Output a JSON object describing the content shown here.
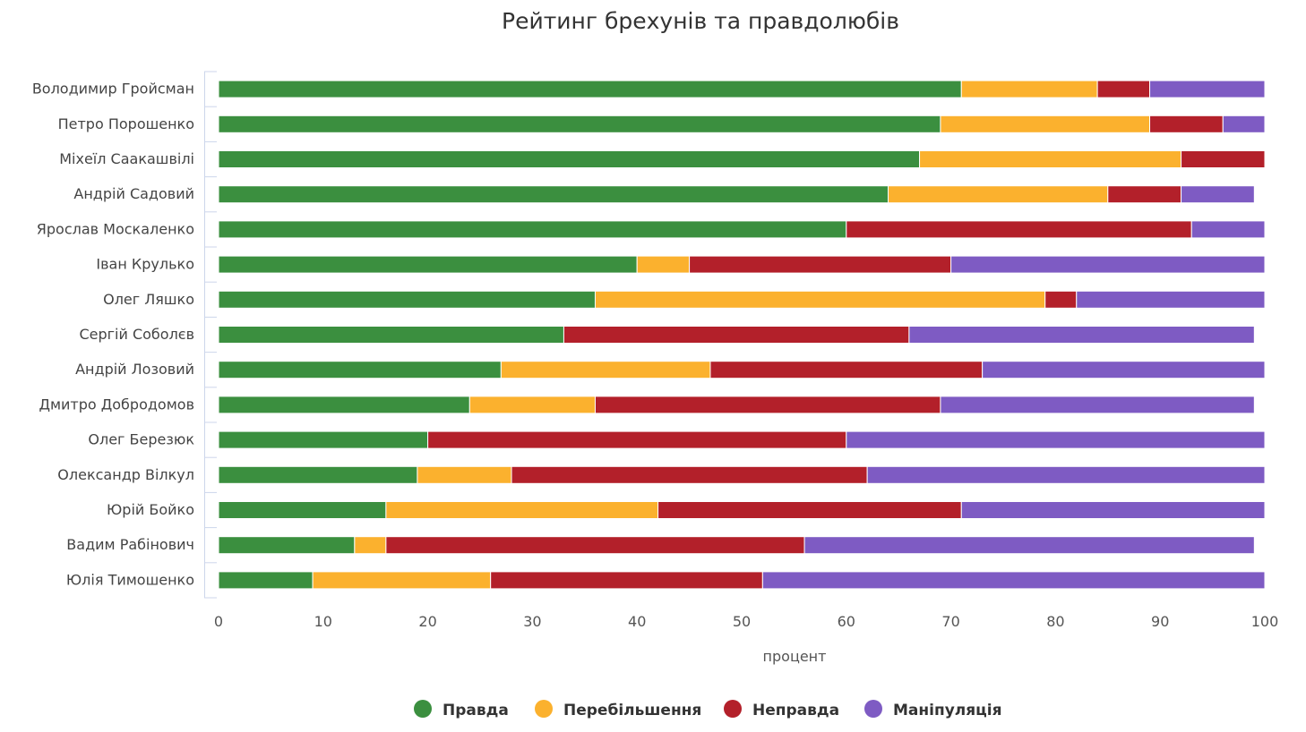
{
  "chart_data": {
    "type": "bar",
    "orientation": "horizontal",
    "stacked": true,
    "title": "Рейтинг брехунів та правдолюбів",
    "xlabel": "процент",
    "ylabel": "",
    "xlim": [
      0,
      100
    ],
    "xticks": [
      0,
      10,
      20,
      30,
      40,
      50,
      60,
      70,
      80,
      90,
      100
    ],
    "grid": false,
    "legend_position": "bottom",
    "categories": [
      "Володимир Гройсман",
      "Петро Порошенко",
      "Міхеїл Саакашвілі",
      "Андрій Садовий",
      "Ярослав Москаленко",
      "Іван Крулько",
      "Олег Ляшко",
      "Сергій Соболєв",
      "Андрій Лозовий",
      "Дмитро Добродомов",
      "Олег Березюк",
      "Олександр Вілкул",
      "Юрій Бойко",
      "Вадим Рабінович",
      "Юлія Тимошенко"
    ],
    "series": [
      {
        "name": "Правда",
        "color": "#3b8f3f",
        "values": [
          71,
          69,
          67,
          64,
          60,
          40,
          36,
          33,
          27,
          24,
          20,
          19,
          16,
          13,
          9
        ]
      },
      {
        "name": "Перебільшення",
        "color": "#fbb12e",
        "values": [
          13,
          20,
          25,
          21,
          0,
          5,
          43,
          0,
          20,
          12,
          0,
          9,
          26,
          3,
          17
        ]
      },
      {
        "name": "Неправда",
        "color": "#b3202a",
        "values": [
          5,
          7,
          8,
          7,
          33,
          25,
          3,
          33,
          26,
          33,
          40,
          34,
          29,
          40,
          26
        ]
      },
      {
        "name": "Маніпуляція",
        "color": "#7e5bc3",
        "values": [
          11,
          4,
          0,
          7,
          7,
          30,
          18,
          33,
          27,
          30,
          40,
          38,
          29,
          43,
          48
        ]
      }
    ]
  }
}
